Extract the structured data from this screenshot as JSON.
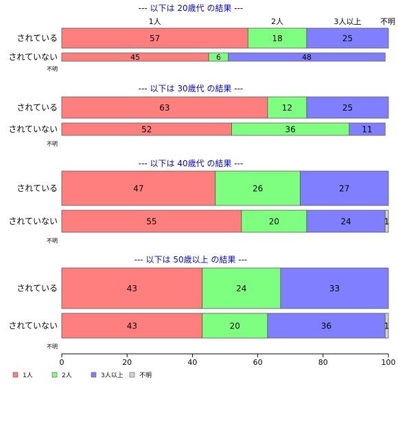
{
  "chart_data": {
    "type": "bar",
    "orientation": "horizontal",
    "stacked": true,
    "xlim": [
      0,
      100
    ],
    "x_ticks": [
      0,
      20,
      40,
      60,
      80,
      100
    ],
    "grid": false,
    "legend_placement": "bottom-left",
    "category_names": [
      "1人",
      "2人",
      "3人以上",
      "不明"
    ],
    "top_labels": [
      "1人",
      "2人",
      "3人以上",
      "不明"
    ],
    "missing_label": "不明",
    "colors": {
      "1人": "#ff7f7f",
      "2人": "#7fff7f",
      "3人以上": "#7f7fff",
      "不明": "#d3d3d3"
    },
    "panels": [
      {
        "title": "--- 以下は 20歳代 の結果 ---",
        "rows": [
          {
            "label": "されている",
            "values": [
              57,
              18,
              25,
              0
            ]
          },
          {
            "label": "されていない",
            "values": [
              45,
              6,
              48,
              0
            ]
          }
        ]
      },
      {
        "title": "--- 以下は 30歳代 の結果 ---",
        "rows": [
          {
            "label": "されている",
            "values": [
              63,
              12,
              25,
              0
            ]
          },
          {
            "label": "されていない",
            "values": [
              52,
              36,
              11,
              0
            ]
          }
        ]
      },
      {
        "title": "--- 以下は 40歳代 の結果 ---",
        "rows": [
          {
            "label": "されている",
            "values": [
              47,
              26,
              27,
              0
            ]
          },
          {
            "label": "されていない",
            "values": [
              55,
              20,
              24,
              1
            ]
          }
        ]
      },
      {
        "title": "--- 以下は 50歳以上 の結果 ---",
        "rows": [
          {
            "label": "されている",
            "values": [
              43,
              24,
              33,
              0
            ]
          },
          {
            "label": "されていない",
            "values": [
              43,
              20,
              36,
              1
            ]
          }
        ]
      }
    ]
  }
}
